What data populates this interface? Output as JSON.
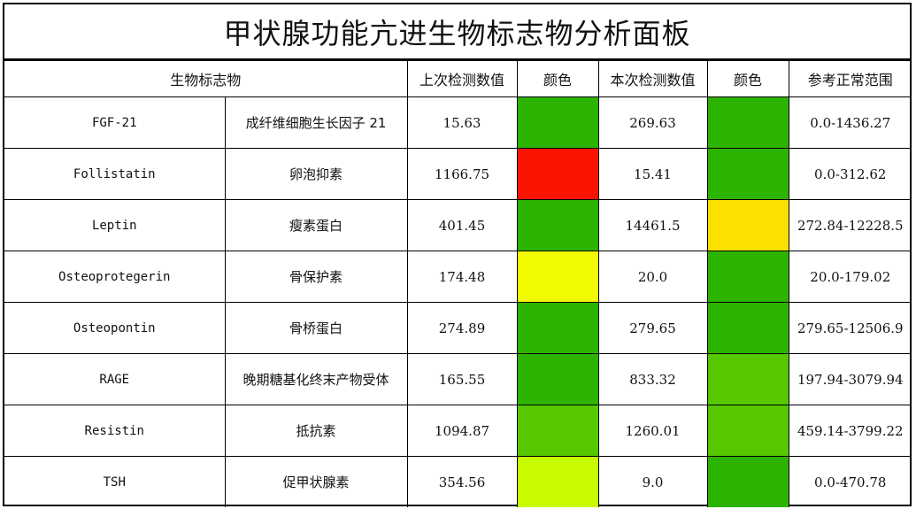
{
  "title": "甲状腺功能亢进生物标志物分析面板",
  "headers": {
    "biomarker": "生物标志物",
    "prev_value": "上次检测数值",
    "prev_color": "颜色",
    "curr_value": "本次检测数值",
    "curr_color": "颜色",
    "ref_range": "参考正常范围"
  },
  "rows": [
    {
      "name_en": "FGF-21",
      "name_cn": "成纤维细胞生长因子 21",
      "prev": "15.63",
      "prev_color": "#2db400",
      "curr": "269.63",
      "curr_color": "#2db400",
      "range": "0.0-1436.27"
    },
    {
      "name_en": "Follistatin",
      "name_cn": "卵泡抑素",
      "prev": "1166.75",
      "prev_color": "#fa1402",
      "curr": "15.41",
      "curr_color": "#2db400",
      "range": "0.0-312.62"
    },
    {
      "name_en": "Leptin",
      "name_cn": "瘦素蛋白",
      "prev": "401.45",
      "prev_color": "#2db400",
      "curr": "14461.5",
      "curr_color": "#fbe000",
      "range": "272.84-12228.5"
    },
    {
      "name_en": "Osteoprotegerin",
      "name_cn": "骨保护素",
      "prev": "174.48",
      "prev_color": "#f0fa00",
      "curr": "20.0",
      "curr_color": "#2db400",
      "range": "20.0-179.02"
    },
    {
      "name_en": "Osteopontin",
      "name_cn": "骨桥蛋白",
      "prev": "274.89",
      "prev_color": "#2db400",
      "curr": "279.65",
      "curr_color": "#2db400",
      "range": "279.65-12506.9"
    },
    {
      "name_en": "RAGE",
      "name_cn": "晚期糖基化终末产物受体",
      "prev": "165.55",
      "prev_color": "#2db400",
      "curr": "833.32",
      "curr_color": "#55c800",
      "range": "197.94-3079.94"
    },
    {
      "name_en": "Resistin",
      "name_cn": "抵抗素",
      "prev": "1094.87",
      "prev_color": "#55c800",
      "curr": "1260.01",
      "curr_color": "#55c800",
      "range": "459.14-3799.22"
    },
    {
      "name_en": "TSH",
      "name_cn": "促甲状腺素",
      "prev": "354.56",
      "prev_color": "#c8fa00",
      "curr": "9.0",
      "curr_color": "#2db400",
      "range": "0.0-470.78"
    }
  ]
}
